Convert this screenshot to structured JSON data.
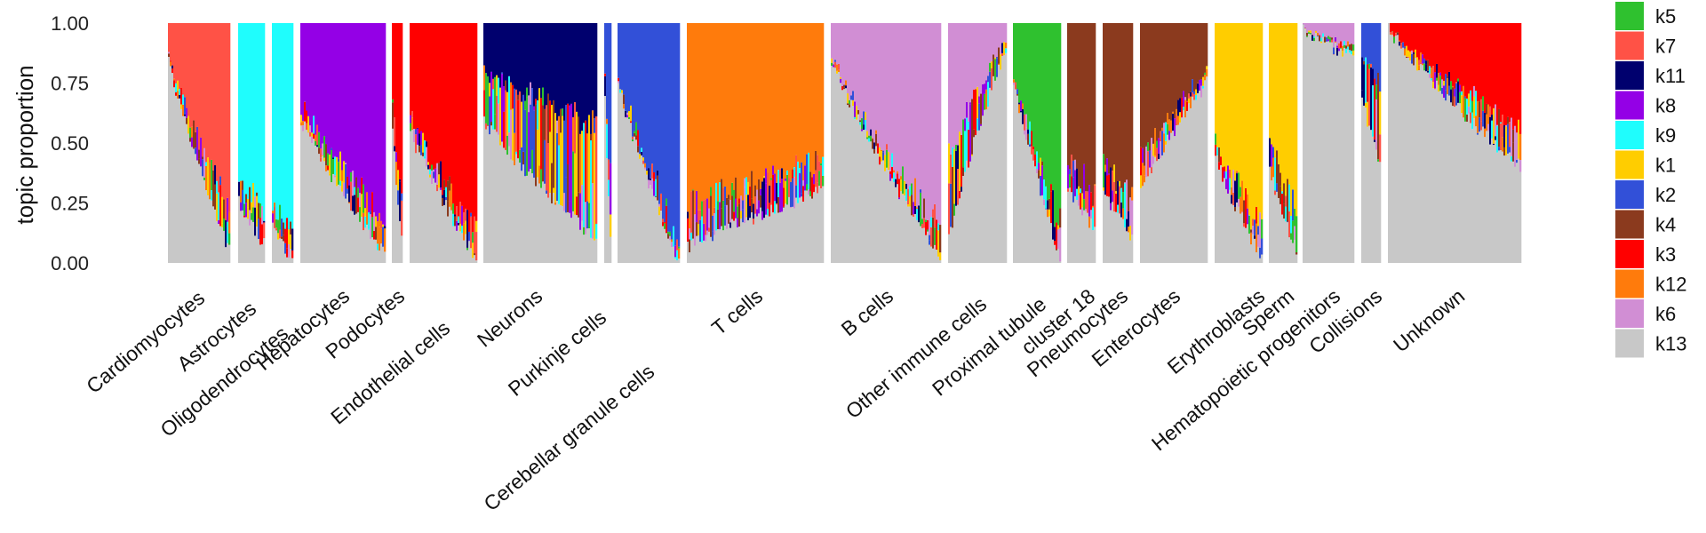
{
  "chart_data": {
    "type": "bar",
    "subtype": "stacked-structure-plot",
    "ylabel": "topic proportion",
    "ylim": [
      0,
      1
    ],
    "y_ticks": [
      "0.00",
      "0.25",
      "0.50",
      "0.75",
      "1.00"
    ],
    "y_tick_values": [
      0,
      0.25,
      0.5,
      0.75,
      1.0
    ],
    "grid": false,
    "legend_position": "right",
    "topics": [
      {
        "name": "k5",
        "color": "#2fc12f"
      },
      {
        "name": "k7",
        "color": "#ff5246"
      },
      {
        "name": "k11",
        "color": "#00006e"
      },
      {
        "name": "k8",
        "color": "#9400e6"
      },
      {
        "name": "k9",
        "color": "#1ffdfd"
      },
      {
        "name": "k1",
        "color": "#ffcd00"
      },
      {
        "name": "k2",
        "color": "#3250d8"
      },
      {
        "name": "k4",
        "color": "#8b3a1e"
      },
      {
        "name": "k3",
        "color": "#ff0000"
      },
      {
        "name": "k12",
        "color": "#ff7b0c"
      },
      {
        "name": "k6",
        "color": "#d18ed4"
      },
      {
        "name": "k13",
        "color": "#c8c8c8"
      }
    ],
    "groups": [
      {
        "label": "Cardiomyocytes",
        "k13": [
          0.85,
          0.05
        ],
        "main": "k7",
        "main_frac": 0.9
      },
      {
        "label": "Astrocytes",
        "k13": [
          0.25,
          0.08
        ],
        "main": "k9",
        "main_frac": 0.95
      },
      {
        "label": "Oligodendrocytes",
        "k13": [
          0.15,
          0.02
        ],
        "main": "k9",
        "main_frac": 0.98
      },
      {
        "label": "Hepatocytes",
        "k13": [
          0.6,
          0.04
        ],
        "main": "k8",
        "main_frac": 0.92
      },
      {
        "label": "Podocytes",
        "k13": [
          0.55,
          0.1
        ],
        "main": "k3",
        "main_frac": 0.85
      },
      {
        "label": "Endothelial cells",
        "k13": [
          0.55,
          0.02
        ],
        "main": "k3",
        "main_frac": 0.96
      },
      {
        "label": "Neurons",
        "k13": [
          0.6,
          0.1
        ],
        "main": "k11",
        "main_frac": 0.55
      },
      {
        "label": "Purkinje cells",
        "k13": [
          0.7,
          0.1
        ],
        "main": "k2",
        "main_frac": 0.8
      },
      {
        "label": "Cerebellar granule cells",
        "k13": [
          0.75,
          0.01
        ],
        "main": "k2",
        "main_frac": 0.97
      },
      {
        "label": "T cells",
        "k13": [
          0.06,
          0.3
        ],
        "main": "k12",
        "main_frac": 0.9
      },
      {
        "label": "B cells",
        "k13": [
          0.85,
          0.02
        ],
        "main": "k6",
        "main_frac": 0.96
      },
      {
        "label": "Other immune cells",
        "k13": [
          0.1,
          0.9
        ],
        "main": "k6",
        "main_frac": 0.7
      },
      {
        "label": "Proximal tubule",
        "k13": [
          0.75,
          0.03
        ],
        "main": "k5",
        "main_frac": 0.92
      },
      {
        "label": "cluster 18",
        "k13": [
          0.3,
          0.15
        ],
        "main": "k4",
        "main_frac": 0.9
      },
      {
        "label": "Pneumocytes",
        "k13": [
          0.3,
          0.1
        ],
        "main": "k4",
        "main_frac": 0.9
      },
      {
        "label": "Enterocytes",
        "k13": [
          0.3,
          0.75
        ],
        "main": "k4",
        "main_frac": 0.9
      },
      {
        "label": "Erythroblasts",
        "k13": [
          0.45,
          0.02
        ],
        "main": "k1",
        "main_frac": 0.95
      },
      {
        "label": "Sperm",
        "k13": [
          0.4,
          0.05
        ],
        "main": "k1",
        "main_frac": 0.9
      },
      {
        "label": "Hematopoietic progenitors",
        "k13": [
          0.98,
          0.85
        ],
        "main": "k6",
        "main_frac": 0.8
      },
      {
        "label": "Collisions",
        "k13": [
          0.7,
          0.4
        ],
        "main": "k2",
        "main_frac": 0.5
      },
      {
        "label": "Unknown",
        "k13": [
          0.98,
          0.4
        ],
        "main": "k3",
        "main_frac": 0.8
      }
    ]
  }
}
